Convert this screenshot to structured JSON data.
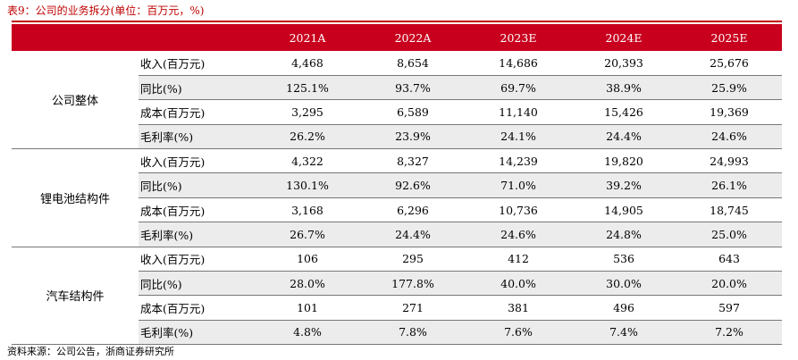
{
  "title": "表9：公司的业务拆分(单位：百万元，%)",
  "header": {
    "blank": "",
    "years": [
      "2021A",
      "2022A",
      "2023E",
      "2024E",
      "2025E"
    ]
  },
  "groups": [
    {
      "name": "公司整体",
      "rows": [
        {
          "metric": "收入(百万元)",
          "values": [
            "4,468",
            "8,654",
            "14,686",
            "20,393",
            "25,676"
          ]
        },
        {
          "metric": "同比(%)",
          "values": [
            "125.1%",
            "93.7%",
            "69.7%",
            "38.9%",
            "25.9%"
          ]
        },
        {
          "metric": "成本(百万元)",
          "values": [
            "3,295",
            "6,589",
            "11,140",
            "15,426",
            "19,369"
          ]
        },
        {
          "metric": "毛利率(%)",
          "values": [
            "26.2%",
            "23.9%",
            "24.1%",
            "24.4%",
            "24.6%"
          ]
        }
      ]
    },
    {
      "name": "锂电池结构件",
      "rows": [
        {
          "metric": "收入(百万元)",
          "values": [
            "4,322",
            "8,327",
            "14,239",
            "19,820",
            "24,993"
          ]
        },
        {
          "metric": "同比(%)",
          "values": [
            "130.1%",
            "92.6%",
            "71.0%",
            "39.2%",
            "26.1%"
          ]
        },
        {
          "metric": "成本(百万元)",
          "values": [
            "3,168",
            "6,296",
            "10,736",
            "14,905",
            "18,745"
          ]
        },
        {
          "metric": "毛利率(%)",
          "values": [
            "26.7%",
            "24.4%",
            "24.6%",
            "24.8%",
            "25.0%"
          ]
        }
      ]
    },
    {
      "name": "汽车结构件",
      "rows": [
        {
          "metric": "收入(百万元)",
          "values": [
            "106",
            "295",
            "412",
            "536",
            "643"
          ]
        },
        {
          "metric": "同比(%)",
          "values": [
            "28.0%",
            "177.8%",
            "40.0%",
            "30.0%",
            "20.0%"
          ]
        },
        {
          "metric": "成本(百万元)",
          "values": [
            "101",
            "271",
            "381",
            "496",
            "597"
          ]
        },
        {
          "metric": "毛利率(%)",
          "values": [
            "4.8%",
            "7.8%",
            "7.6%",
            "7.4%",
            "7.2%"
          ]
        }
      ]
    }
  ],
  "source": "资料来源：公司公告，浙商证券研究所",
  "colors": {
    "accent": "#c8001e",
    "title": "#c00000",
    "stripe": "#ececec"
  }
}
